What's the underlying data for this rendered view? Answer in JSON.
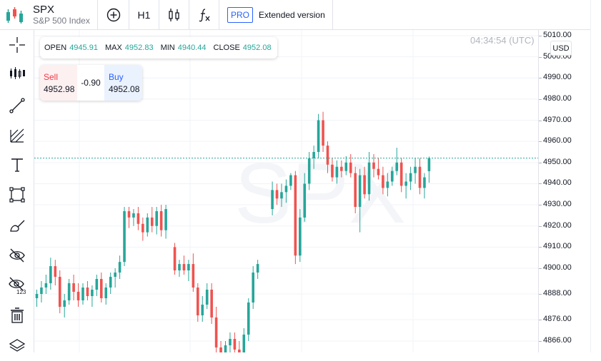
{
  "header": {
    "symbol": "SPX",
    "description": "S&P 500 Index",
    "interval": "H1",
    "pro_badge": "PRO",
    "extended_label": "Extended version"
  },
  "toolbar": {
    "tools": [
      "crosshair-icon",
      "indicators-icon",
      "trend-line-icon",
      "fib-icon",
      "text-icon",
      "rectangle-icon",
      "brush-icon",
      "hide-drawings-icon",
      "hide-with-counter-icon",
      "remove-all-icon",
      "layers-icon"
    ],
    "badge_count": "123"
  },
  "ohlc": {
    "open_label": "OPEN",
    "open": "4945.91",
    "max_label": "MAX",
    "max": "4952.83",
    "min_label": "MIN",
    "min": "4940.44",
    "close_label": "CLOSE",
    "close": "4952.08"
  },
  "trade": {
    "sell_label": "Sell",
    "sell_price": "4952.98",
    "spread": "-0.90",
    "buy_label": "Buy",
    "buy_price": "4952.08"
  },
  "clock": "04:34:54 (UTC)",
  "watermark": "SPX",
  "currency": "USD",
  "colors": {
    "up": "#26a69a",
    "down": "#ef5350",
    "accent": "#2962ff",
    "grid": "#f0f3fa"
  },
  "chart_data": {
    "type": "candlestick",
    "current_price": 4952.08,
    "price_ticks": [
      "5010.00",
      "5000.00",
      "4990.00",
      "4980.00",
      "4970.00",
      "4960.00",
      "4950.00",
      "4940.00",
      "4930.00",
      "4920.00",
      "4910.00",
      "4900.00",
      "4888.00",
      "4876.00",
      "4866.00"
    ],
    "ohlc": [
      [
        4886,
        4890,
        4882,
        4888
      ],
      [
        4888,
        4894,
        4884,
        4891
      ],
      [
        4891,
        4897,
        4888,
        4893
      ],
      [
        4893,
        4905,
        4890,
        4901
      ],
      [
        4901,
        4904,
        4892,
        4896
      ],
      [
        4896,
        4899,
        4879,
        4882
      ],
      [
        4882,
        4888,
        4877,
        4885
      ],
      [
        4885,
        4895,
        4883,
        4893
      ],
      [
        4893,
        4897,
        4885,
        4889
      ],
      [
        4889,
        4893,
        4882,
        4885
      ],
      [
        4885,
        4893,
        4883,
        4891
      ],
      [
        4891,
        4894,
        4885,
        4887
      ],
      [
        4887,
        4892,
        4882,
        4890
      ],
      [
        4890,
        4897,
        4887,
        4895
      ],
      [
        4895,
        4898,
        4884,
        4886
      ],
      [
        4886,
        4893,
        4883,
        4891
      ],
      [
        4891,
        4898,
        4888,
        4896
      ],
      [
        4896,
        4900,
        4891,
        4898
      ],
      [
        4898,
        4906,
        4895,
        4903
      ],
      [
        4903,
        4929,
        4901,
        4927
      ],
      [
        4927,
        4929,
        4919,
        4924
      ],
      [
        4924,
        4928,
        4920,
        4926
      ],
      [
        4926,
        4929,
        4918,
        4921
      ],
      [
        4921,
        4924,
        4913,
        4917
      ],
      [
        4917,
        4926,
        4915,
        4924
      ],
      [
        4924,
        4929,
        4917,
        4920
      ],
      [
        4920,
        4929,
        4916,
        4927
      ],
      [
        4927,
        4930,
        4915,
        4918
      ],
      [
        4918,
        4930,
        4914,
        4928
      ],
      [
        4910,
        4912,
        4897,
        4899
      ],
      [
        4899,
        4904,
        4896,
        4902
      ],
      [
        4902,
        4906,
        4897,
        4899
      ],
      [
        4899,
        4904,
        4894,
        4902
      ],
      [
        4902,
        4907,
        4889,
        4891
      ],
      [
        4891,
        4893,
        4875,
        4878
      ],
      [
        4878,
        4887,
        4875,
        4883
      ],
      [
        4883,
        4893,
        4881,
        4890
      ],
      [
        4890,
        4893,
        4874,
        4877
      ],
      [
        4877,
        4882,
        4855,
        4863
      ],
      [
        4863,
        4866,
        4855,
        4858
      ],
      [
        4860,
        4866,
        4856,
        4864
      ],
      [
        4864,
        4870,
        4860,
        4867
      ],
      [
        4867,
        4870,
        4859,
        4862
      ],
      [
        4862,
        4866,
        4856,
        4860
      ],
      [
        4860,
        4872,
        4857,
        4869
      ],
      [
        4869,
        4886,
        4866,
        4884
      ],
      [
        4884,
        4901,
        4881,
        4898
      ],
      [
        4898,
        4904,
        4895,
        4902
      ],
      [
        4928,
        4941,
        4925,
        4937
      ],
      [
        4937,
        4940,
        4930,
        4933
      ],
      [
        4933,
        4940,
        4929,
        4936
      ],
      [
        4936,
        4942,
        4931,
        4939
      ],
      [
        4939,
        4945,
        4937,
        4944
      ],
      [
        4944,
        4946,
        4902,
        4906
      ],
      [
        4906,
        4928,
        4903,
        4924
      ],
      [
        4924,
        4945,
        4922,
        4940
      ],
      [
        4940,
        4955,
        4937,
        4952
      ],
      [
        4952,
        4958,
        4947,
        4955
      ],
      [
        4955,
        4973,
        4952,
        4970
      ],
      [
        4970,
        4974,
        4955,
        4958
      ],
      [
        4958,
        4960,
        4945,
        4949
      ],
      [
        4949,
        4952,
        4941,
        4943
      ],
      [
        4943,
        4951,
        4940,
        4948
      ],
      [
        4948,
        4951,
        4943,
        4946
      ],
      [
        4946,
        4953,
        4944,
        4950
      ],
      [
        4950,
        4954,
        4943,
        4945
      ],
      [
        4945,
        4948,
        4926,
        4929
      ],
      [
        4929,
        4947,
        4917,
        4944
      ],
      [
        4944,
        4948,
        4933,
        4935
      ],
      [
        4935,
        4955,
        4932,
        4950
      ],
      [
        4950,
        4954,
        4943,
        4947
      ],
      [
        4947,
        4952,
        4942,
        4944
      ],
      [
        4944,
        4948,
        4935,
        4938
      ],
      [
        4938,
        4945,
        4934,
        4941
      ],
      [
        4941,
        4948,
        4939,
        4946
      ],
      [
        4946,
        4957,
        4944,
        4950
      ],
      [
        4950,
        4952,
        4936,
        4939
      ],
      [
        4939,
        4945,
        4933,
        4941
      ],
      [
        4941,
        4948,
        4937,
        4945
      ],
      [
        4945,
        4952,
        4940,
        4948
      ],
      [
        4948,
        4952,
        4935,
        4938
      ],
      [
        4938,
        4945,
        4933,
        4943
      ],
      [
        4945.91,
        4952.83,
        4940.44,
        4952.08
      ]
    ]
  }
}
